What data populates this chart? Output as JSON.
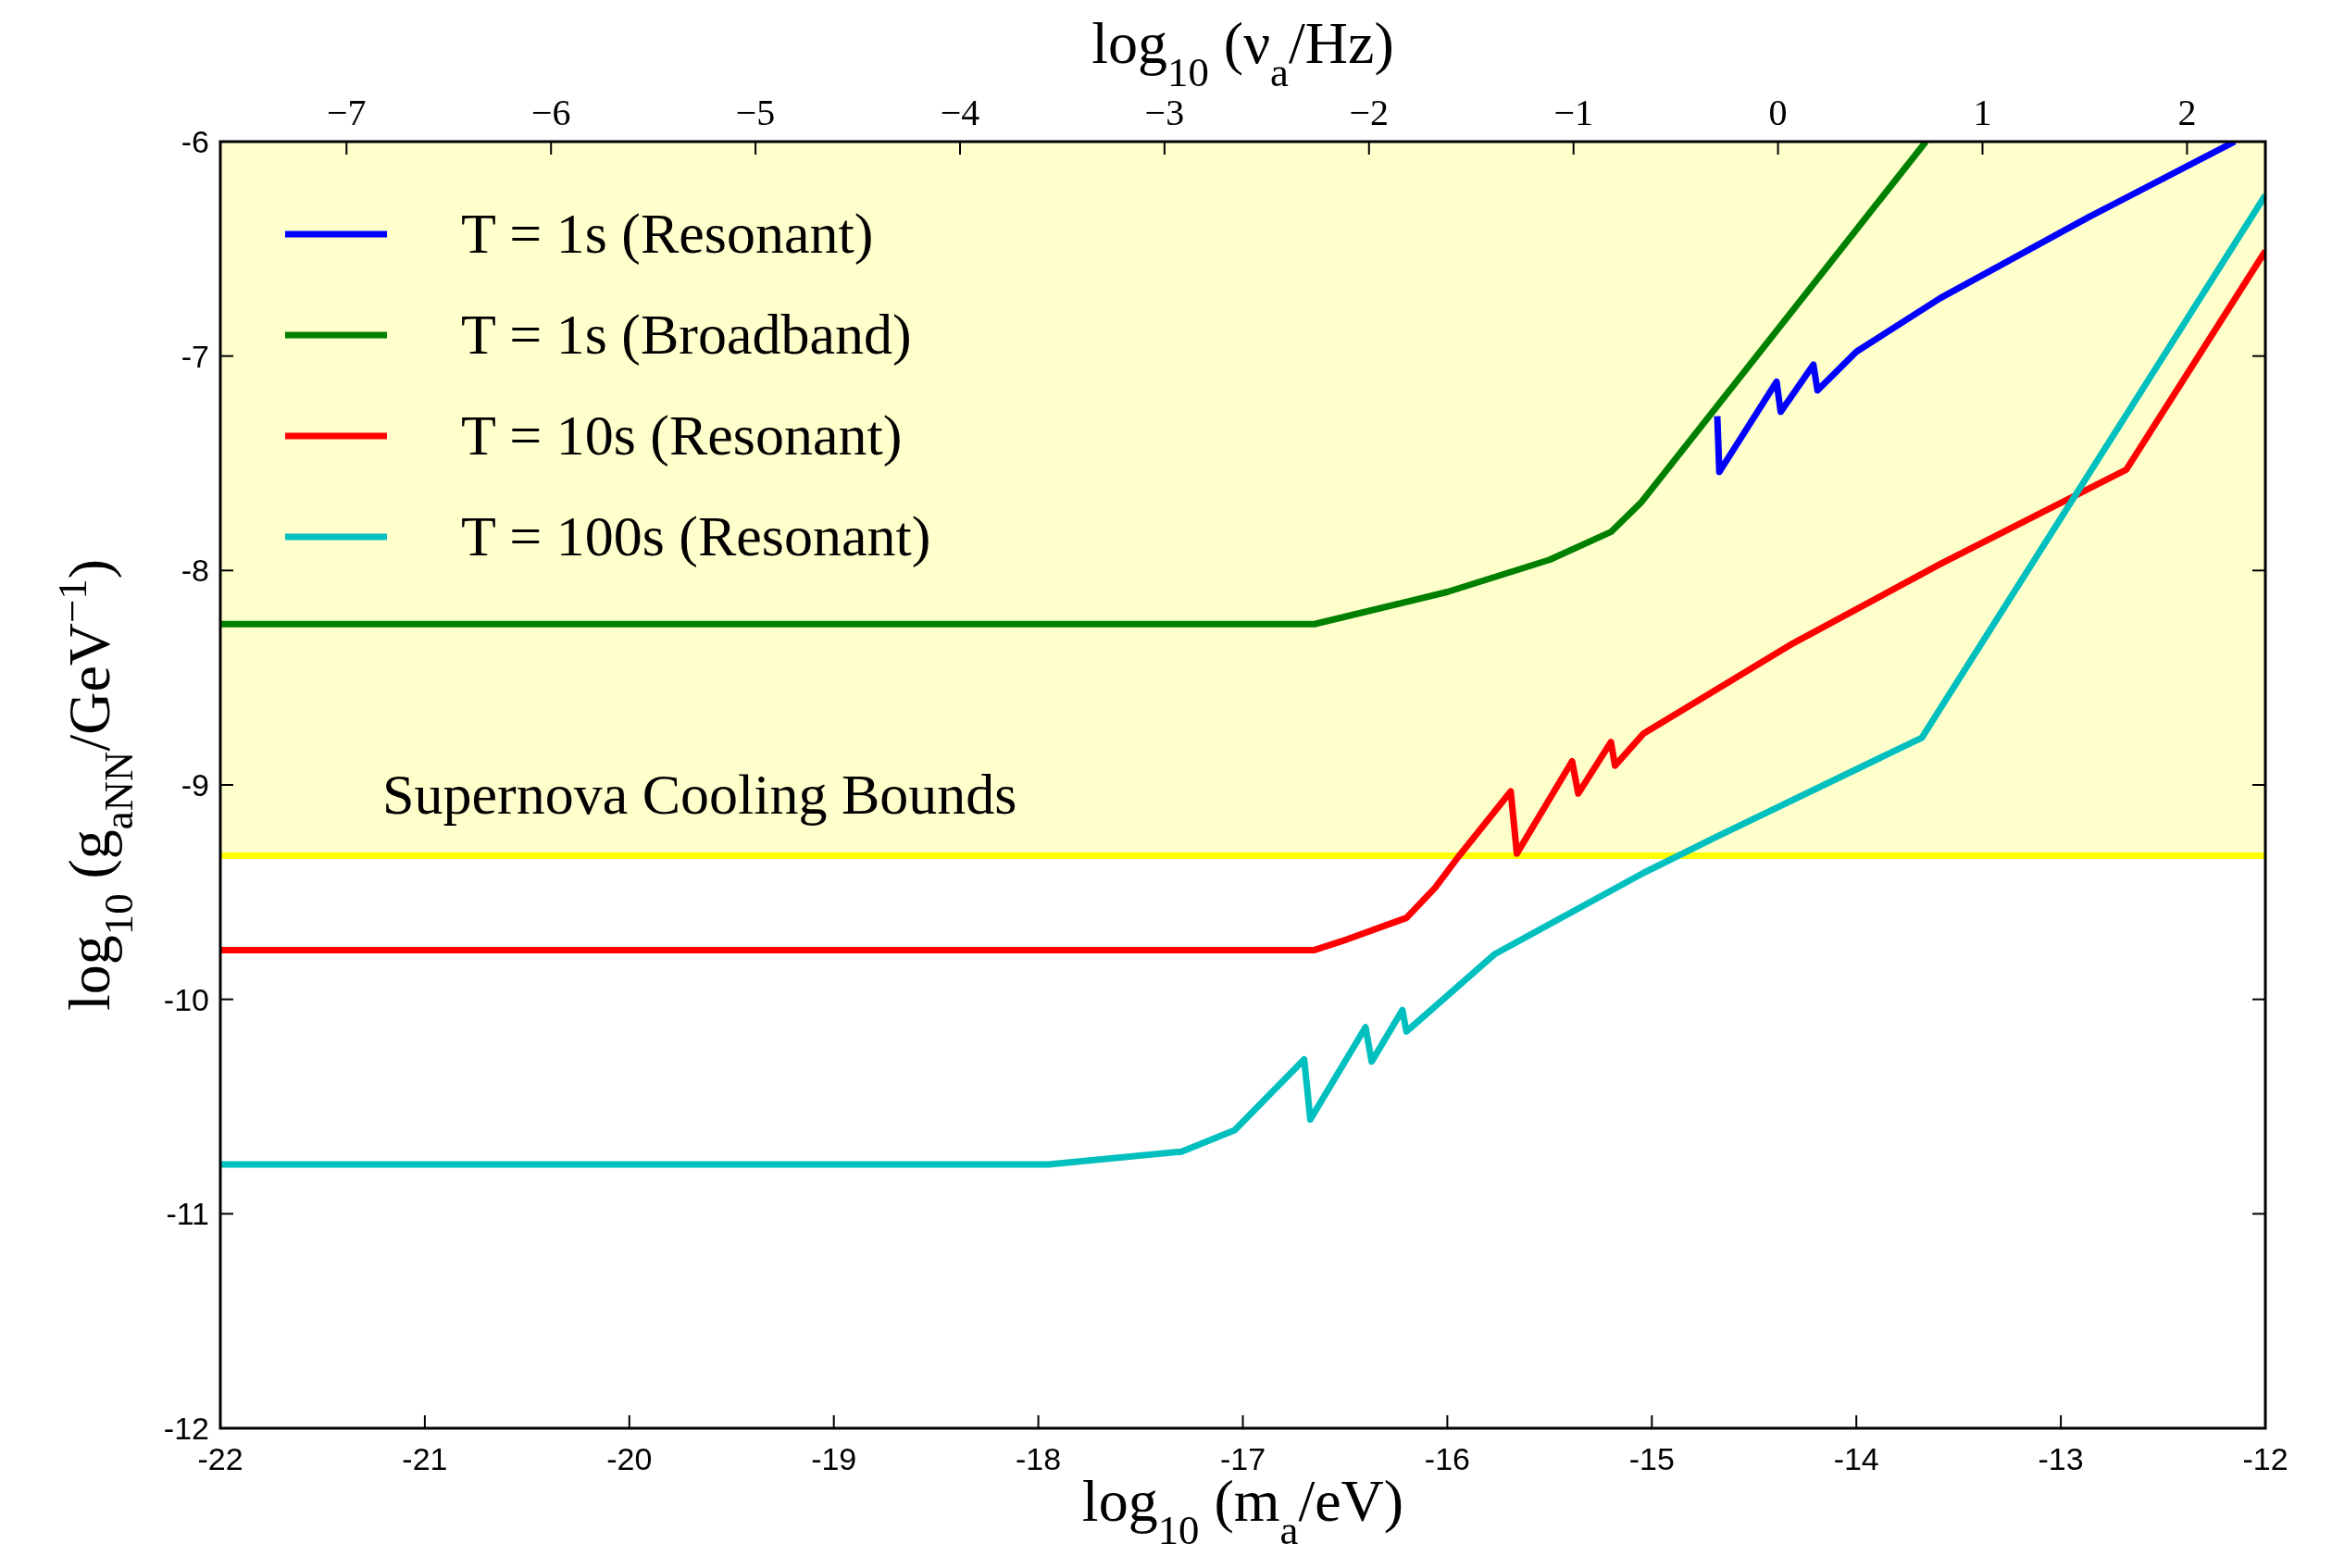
{
  "chart_data": {
    "type": "line",
    "xlabel": "log$_{10}$ (m$_{a}$/eV)",
    "ylabel": "log$_{10}$ (g$_{aNN}$/GeV$^{−1}$)",
    "x2label": "log$_{10}$ (ν$_{a}$/Hz)",
    "xlim": [
      -22,
      -12
    ],
    "xticks": [
      -22,
      -21,
      -20,
      -19,
      -18,
      -17,
      -16,
      -15,
      -14,
      -13,
      -12
    ],
    "ylim": [
      -12,
      -6
    ],
    "yticks": [
      -12,
      -11,
      -10,
      -9,
      -8,
      -7,
      -6
    ],
    "x2lim": [
      -7.617,
      2.383
    ],
    "x2ticks": [
      {
        "value": -7,
        "label": "−7"
      },
      {
        "value": -6,
        "label": "−6"
      },
      {
        "value": -5,
        "label": "−5"
      },
      {
        "value": -4,
        "label": "−4"
      },
      {
        "value": -3,
        "label": "−3"
      },
      {
        "value": -2,
        "label": "−2"
      },
      {
        "value": -1,
        "label": "−1"
      },
      {
        "value": 0,
        "label": "0"
      },
      {
        "value": 1,
        "label": "1"
      },
      {
        "value": 2,
        "label": "2"
      }
    ],
    "grid": false,
    "legend": "top left",
    "line_style": "solid",
    "bands": [
      {
        "axis": "y",
        "from": -9.33,
        "to": -6,
        "label": "Supernova Cooling Bounds",
        "color": "#ffffcc"
      }
    ],
    "ref_lines": [
      {
        "axis": "y",
        "value": -9.33,
        "color": "#ffff00"
      }
    ],
    "series": [
      {
        "name": "T = 1s (Resonant)",
        "color": "#0000ff",
        "x": [
          -14.68,
          -14.67,
          -14.39,
          -14.37,
          -14.21,
          -14.19,
          -14.0,
          -13.59,
          -12.86,
          -12.15
        ],
        "values": [
          -7.28,
          -7.54,
          -7.12,
          -7.26,
          -7.04,
          -7.16,
          -6.98,
          -6.73,
          -6.35,
          -6.0
        ]
      },
      {
        "name": "T = 1s (Broadband)",
        "color": "#008000",
        "x": [
          -22,
          -16.65,
          -16,
          -15.5,
          -15.2,
          -15.05,
          -13.66
        ],
        "values": [
          -8.25,
          -8.25,
          -8.1,
          -7.95,
          -7.82,
          -7.68,
          -6.0
        ]
      },
      {
        "name": "T = 10s (Resonant)",
        "color": "#ff0000",
        "x": [
          -22,
          -16.65,
          -16.49,
          -16.2,
          -16.06,
          -15.95,
          -15.69,
          -15.66,
          -15.39,
          -15.36,
          -15.2,
          -15.18,
          -15.04,
          -14.31,
          -13.59,
          -12.68,
          -12
        ],
        "values": [
          -9.77,
          -9.77,
          -9.72,
          -9.62,
          -9.48,
          -9.34,
          -9.03,
          -9.32,
          -8.89,
          -9.04,
          -8.8,
          -8.91,
          -8.76,
          -8.34,
          -7.97,
          -7.53,
          -6.51
        ]
      },
      {
        "name": "T = 100s (Resonant)",
        "color": "#00bfbf",
        "x": [
          -22,
          -17.95,
          -17.3,
          -17.04,
          -16.7,
          -16.67,
          -16.4,
          -16.37,
          -16.22,
          -16.2,
          -15.77,
          -15.04,
          -14.68,
          -13.68,
          -12
        ],
        "values": [
          -10.77,
          -10.77,
          -10.71,
          -10.61,
          -10.28,
          -10.56,
          -10.13,
          -10.29,
          -10.05,
          -10.15,
          -9.79,
          -9.41,
          -9.24,
          -8.78,
          -6.25
        ]
      }
    ]
  }
}
